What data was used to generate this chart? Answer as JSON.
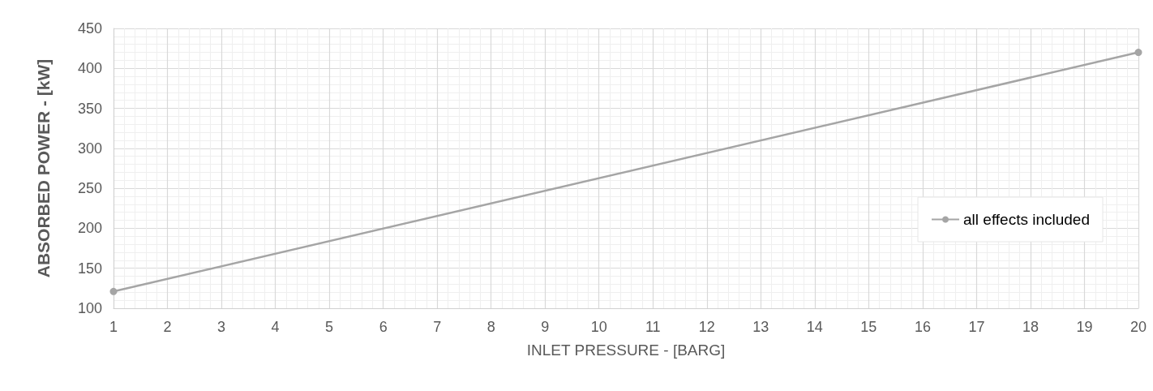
{
  "chart_data": {
    "type": "line",
    "xlabel": "INLET PRESSURE - [BARG]",
    "ylabel": "ABSORBED POWER - [kW]",
    "x": [
      1,
      20
    ],
    "series": [
      {
        "name": "all effects included",
        "color": "#a5a5a5",
        "values": [
          121,
          420
        ]
      }
    ],
    "xlim": [
      1,
      20
    ],
    "xticks": [
      1,
      2,
      3,
      4,
      5,
      6,
      7,
      8,
      9,
      10,
      11,
      12,
      13,
      14,
      15,
      16,
      17,
      18,
      19,
      20
    ],
    "ylim": [
      100,
      450
    ],
    "yticks": [
      100,
      150,
      200,
      250,
      300,
      350,
      400,
      450
    ],
    "grid": true,
    "legend": "right",
    "marker": "circle",
    "line_style": "solid"
  }
}
